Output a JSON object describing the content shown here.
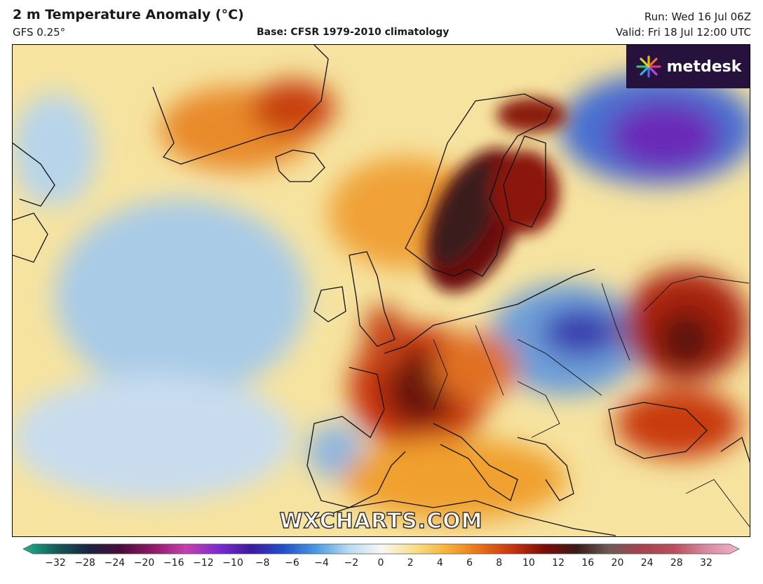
{
  "header": {
    "title": "2 m Temperature Anomaly (°C)",
    "model": "GFS 0.25°",
    "base": "Base: CFSR 1979-2010 climatology",
    "run": "Run: Wed 16 Jul 06Z",
    "valid": "Valid: Fri 18 Jul 12:00 UTC"
  },
  "logo": {
    "text": "metdesk",
    "icon": "metdesk-burst-icon"
  },
  "watermark": "WXCHARTS.COM",
  "colorbar": {
    "ticks": [
      "−32",
      "−28",
      "−24",
      "−20",
      "−16",
      "−12",
      "−10",
      "−8",
      "−6",
      "−4",
      "−2",
      "0",
      "2",
      "4",
      "6",
      "8",
      "10",
      "12",
      "16",
      "20",
      "24",
      "28",
      "32"
    ],
    "stops": [
      "#1fb58a",
      "#155c5a",
      "#1c2340",
      "#4a0d3a",
      "#8f1a6a",
      "#c63fae",
      "#7c2bd0",
      "#3d1a9e",
      "#2050c8",
      "#4a9ae0",
      "#b9daf0",
      "#f7f7f7",
      "#f7e08a",
      "#f6b33a",
      "#e8731a",
      "#c8360f",
      "#7c0d08",
      "#3a1b16",
      "#6f5a58",
      "#a5434e",
      "#b8505c",
      "#d88aa0",
      "#f0b4c8"
    ]
  },
  "map": {
    "field": "2 m Temperature Anomaly",
    "hot_regions": [
      "Scandinavia",
      "France",
      "Greenland",
      "Western Russia",
      "Black Sea"
    ],
    "cool_regions": [
      "Central Atlantic",
      "Northwest Russia",
      "Poland",
      "Iberia"
    ]
  }
}
